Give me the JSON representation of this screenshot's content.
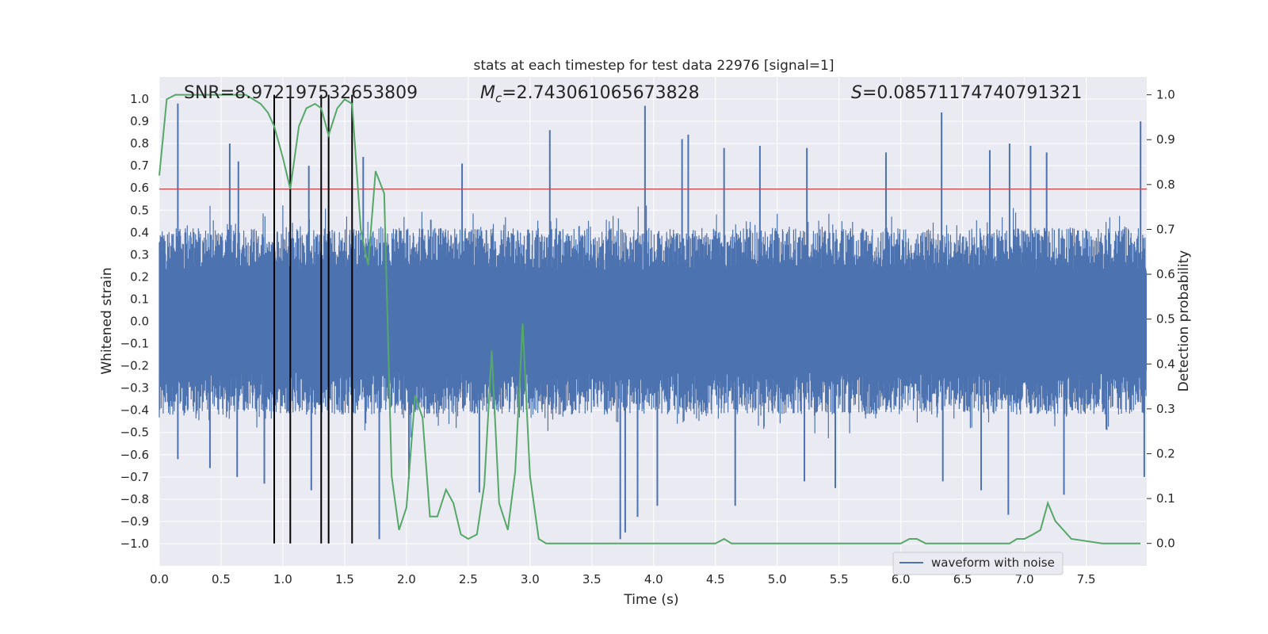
{
  "chart_data": {
    "type": "line",
    "title": "stats at each timestep for test data 22976 [signal=1]",
    "xlabel": "Time (s)",
    "ylabel": "Whitened strain",
    "ylabel_right": "Detection probability",
    "xlim": [
      0.0,
      7.99
    ],
    "ylim": [
      -1.1,
      1.1
    ],
    "ylim_right": [
      -0.05,
      1.04
    ],
    "x_ticks": [
      0.0,
      0.5,
      1.0,
      1.5,
      2.0,
      2.5,
      3.0,
      3.5,
      4.0,
      4.5,
      5.0,
      5.5,
      6.0,
      6.5,
      7.0,
      7.5
    ],
    "x_tick_labels": [
      "0.0",
      "0.5",
      "1.0",
      "1.5",
      "2.0",
      "2.5",
      "3.0",
      "3.5",
      "4.0",
      "4.5",
      "5.0",
      "5.5",
      "6.0",
      "6.5",
      "7.0",
      "7.5"
    ],
    "y_ticks": [
      1.0,
      0.9,
      0.8,
      0.7,
      0.6,
      0.5,
      0.4,
      0.3,
      0.2,
      0.1,
      0.0,
      -0.1,
      -0.2,
      -0.3,
      -0.4,
      -0.5,
      -0.6,
      -0.7,
      -0.8,
      -0.9,
      -1.0
    ],
    "y_tick_labels": [
      "1.0",
      "0.9",
      "0.8",
      "0.7",
      "0.6",
      "0.5",
      "0.4",
      "0.3",
      "0.2",
      "0.1",
      "0.0",
      "−0.1",
      "−0.2",
      "−0.3",
      "−0.4",
      "−0.5",
      "−0.6",
      "−0.7",
      "−0.8",
      "−0.9",
      "−1.0"
    ],
    "y_right_ticks": [
      1.0,
      0.9,
      0.8,
      0.7,
      0.6,
      0.5,
      0.4,
      0.3,
      0.2,
      0.1,
      0.0
    ],
    "y_right_tick_labels": [
      "1.0",
      "0.9",
      "0.8",
      "0.7",
      "0.6",
      "0.5",
      "0.4",
      "0.3",
      "0.2",
      "0.1",
      "0.0"
    ],
    "stats": {
      "snr_text": "SNR=8.972197532653809",
      "mc_symbol": "M",
      "mc_subscript": "c",
      "mc_value": "=2.743061065673828",
      "s_symbol": "S",
      "s_value": "=0.08571174740791321"
    },
    "threshold": 0.79,
    "event_lines_x": [
      0.93,
      1.06,
      1.31,
      1.37,
      1.56
    ],
    "legend": {
      "label": "waveform with noise",
      "position": "lower-right"
    },
    "waveform": {
      "name": "waveform with noise",
      "color": "#4c72b0",
      "sample_rate": 256,
      "typical_amplitude": 0.42,
      "spikes_x": [
        0.15,
        0.57,
        0.64,
        1.21,
        1.65,
        2.45,
        3.16,
        3.93,
        4.23,
        4.28,
        4.57,
        4.86,
        5.24,
        5.88,
        6.33,
        6.72,
        6.88,
        7.05,
        7.18,
        7.94
      ],
      "spikes_y": [
        0.98,
        0.8,
        0.72,
        0.7,
        0.74,
        0.71,
        0.86,
        0.97,
        0.82,
        0.84,
        0.78,
        0.79,
        0.78,
        0.76,
        0.94,
        0.77,
        0.8,
        0.79,
        0.76,
        0.9
      ],
      "dips_x": [
        0.15,
        0.41,
        0.63,
        0.85,
        1.23,
        1.78,
        2.02,
        2.59,
        3.73,
        3.77,
        3.87,
        4.03,
        4.66,
        5.22,
        5.47,
        6.34,
        6.65,
        6.87,
        7.32,
        7.97
      ],
      "dips_y": [
        -0.62,
        -0.66,
        -0.7,
        -0.73,
        -0.76,
        -0.98,
        -0.71,
        -0.77,
        -0.98,
        -0.95,
        -0.88,
        -0.83,
        -0.83,
        -0.72,
        -0.75,
        -0.72,
        -0.76,
        -0.87,
        -0.78,
        -0.7
      ]
    },
    "probability": {
      "name": "detection probability",
      "color": "#55a868",
      "x": [
        0.0,
        0.06,
        0.13,
        0.25,
        0.38,
        0.5,
        0.63,
        0.7,
        0.76,
        0.82,
        0.88,
        0.93,
        1.0,
        1.06,
        1.13,
        1.19,
        1.26,
        1.31,
        1.37,
        1.44,
        1.5,
        1.56,
        1.63,
        1.69,
        1.75,
        1.82,
        1.88,
        1.94,
        2.0,
        2.07,
        2.13,
        2.19,
        2.25,
        2.32,
        2.38,
        2.44,
        2.5,
        2.57,
        2.63,
        2.69,
        2.75,
        2.82,
        2.88,
        2.94,
        3.0,
        3.07,
        3.13,
        3.19,
        3.38,
        3.5,
        3.75,
        3.88,
        4.0,
        4.25,
        4.38,
        4.5,
        4.57,
        4.63,
        4.69,
        4.75,
        5.0,
        5.25,
        5.5,
        5.63,
        5.88,
        6.0,
        6.07,
        6.13,
        6.2,
        6.25,
        6.5,
        6.75,
        6.88,
        6.94,
        7.0,
        7.07,
        7.13,
        7.19,
        7.25,
        7.38,
        7.63,
        7.94
      ],
      "y": [
        0.82,
        0.99,
        1.0,
        1.0,
        1.0,
        1.0,
        1.0,
        1.0,
        0.99,
        0.98,
        0.96,
        0.93,
        0.86,
        0.79,
        0.93,
        0.97,
        0.98,
        0.97,
        0.91,
        0.97,
        0.99,
        0.98,
        0.7,
        0.62,
        0.83,
        0.78,
        0.15,
        0.03,
        0.08,
        0.33,
        0.28,
        0.06,
        0.06,
        0.12,
        0.09,
        0.02,
        0.01,
        0.02,
        0.13,
        0.43,
        0.09,
        0.03,
        0.16,
        0.49,
        0.15,
        0.01,
        0.0,
        0.0,
        0.0,
        0.0,
        0.0,
        0.0,
        0.0,
        0.0,
        0.0,
        0.0,
        0.01,
        0.0,
        0.0,
        0.0,
        0.0,
        0.0,
        0.0,
        0.0,
        0.0,
        0.0,
        0.01,
        0.01,
        0.0,
        0.0,
        0.0,
        0.0,
        0.0,
        0.01,
        0.01,
        0.02,
        0.03,
        0.09,
        0.05,
        0.01,
        0.0,
        0.0
      ]
    },
    "colors": {
      "background": "#eaeaf2",
      "grid": "#ffffff",
      "threshold": "#c44e52",
      "event_line": "#000000"
    }
  }
}
